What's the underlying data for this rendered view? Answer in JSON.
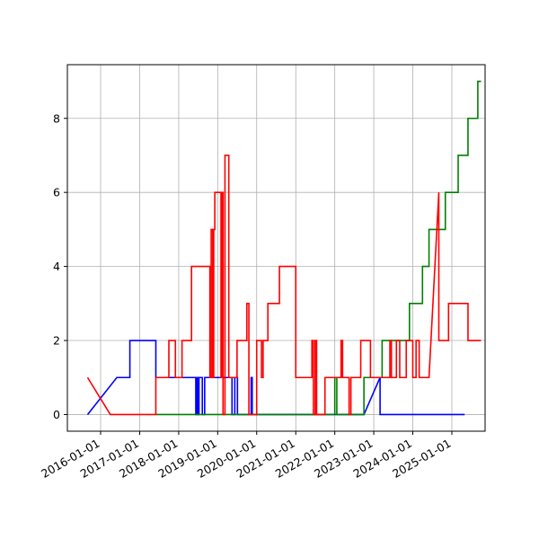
{
  "chart_data": {
    "type": "line",
    "title": "",
    "xlabel": "",
    "ylabel": "",
    "grid": true,
    "legend": "none",
    "x_type": "date",
    "xlim": [
      "2015-08-01",
      "2025-08-01"
    ],
    "ylim": [
      -0.45,
      9.45
    ],
    "x_ticks": [
      "2016-01-01",
      "2017-01-01",
      "2018-01-01",
      "2019-01-01",
      "2020-01-01",
      "2021-01-01",
      "2022-01-01",
      "2023-01-01",
      "2024-01-01",
      "2025-01-01"
    ],
    "x_tick_labels": [
      "2016-01-01",
      "2017-01-01",
      "2018-01-01",
      "2019-01-01",
      "2020-01-01",
      "2021-01-01",
      "2022-01-01",
      "2023-01-01",
      "2024-01-01",
      "2025-01-01"
    ],
    "y_ticks": [
      0,
      2,
      4,
      6,
      8
    ],
    "y_tick_labels": [
      "0",
      "2",
      "4",
      "6",
      "8"
    ],
    "series": [
      {
        "color": "#0000ff",
        "points": [
          [
            "2015-09-01",
            0
          ],
          [
            "2016-06-01",
            1
          ],
          [
            "2016-10-01",
            1
          ],
          [
            "2016-10-01",
            2
          ],
          [
            "2017-06-01",
            2
          ],
          [
            "2017-06-01",
            1
          ],
          [
            "2018-06-10",
            1
          ],
          [
            "2018-06-10",
            0
          ],
          [
            "2018-06-20",
            0
          ],
          [
            "2018-06-20",
            1
          ],
          [
            "2018-07-01",
            1
          ],
          [
            "2018-07-01",
            0
          ],
          [
            "2018-07-10",
            0
          ],
          [
            "2018-07-10",
            1
          ],
          [
            "2018-08-10",
            1
          ],
          [
            "2018-08-10",
            0
          ],
          [
            "2018-09-01",
            0
          ],
          [
            "2018-09-01",
            1
          ],
          [
            "2019-05-15",
            1
          ],
          [
            "2019-05-15",
            0
          ],
          [
            "2019-06-10",
            0
          ],
          [
            "2019-06-10",
            1
          ],
          [
            "2019-07-05",
            1
          ],
          [
            "2019-07-05",
            0
          ],
          [
            "2019-11-10",
            0
          ],
          [
            "2019-11-10",
            1
          ],
          [
            "2019-11-20",
            1
          ],
          [
            "2019-11-20",
            0
          ],
          [
            "2022-10-01",
            0
          ],
          [
            "2023-03-01",
            1
          ],
          [
            "2023-03-01",
            0
          ],
          [
            "2025-05-01",
            0
          ]
        ]
      },
      {
        "color": "#008000",
        "points": [
          [
            "2017-06-01",
            0
          ],
          [
            "2022-01-01",
            0
          ],
          [
            "2022-01-01",
            1
          ],
          [
            "2022-01-20",
            1
          ],
          [
            "2022-01-20",
            0
          ],
          [
            "2022-10-01",
            0
          ],
          [
            "2022-10-01",
            1
          ],
          [
            "2023-03-20",
            1
          ],
          [
            "2023-03-20",
            2
          ],
          [
            "2023-12-01",
            2
          ],
          [
            "2023-12-01",
            3
          ],
          [
            "2024-04-01",
            3
          ],
          [
            "2024-04-01",
            4
          ],
          [
            "2024-06-01",
            4
          ],
          [
            "2024-06-01",
            5
          ],
          [
            "2024-11-01",
            5
          ],
          [
            "2024-11-01",
            6
          ],
          [
            "2025-03-01",
            6
          ],
          [
            "2025-03-01",
            7
          ],
          [
            "2025-06-01",
            7
          ],
          [
            "2025-06-01",
            8
          ],
          [
            "2025-09-01",
            8
          ],
          [
            "2025-09-01",
            9
          ],
          [
            "2025-10-01",
            9
          ]
        ]
      },
      {
        "color": "#ff0000",
        "points": [
          [
            "2015-09-01",
            1
          ],
          [
            "2016-04-01",
            0
          ],
          [
            "2017-06-01",
            0
          ],
          [
            "2017-06-01",
            1
          ],
          [
            "2017-10-01",
            1
          ],
          [
            "2017-10-01",
            2
          ],
          [
            "2017-12-01",
            2
          ],
          [
            "2017-12-01",
            1
          ],
          [
            "2018-02-01",
            1
          ],
          [
            "2018-02-01",
            2
          ],
          [
            "2018-05-01",
            2
          ],
          [
            "2018-05-01",
            4
          ],
          [
            "2018-10-20",
            4
          ],
          [
            "2018-10-20",
            1
          ],
          [
            "2018-11-01",
            1
          ],
          [
            "2018-11-01",
            5
          ],
          [
            "2018-11-15",
            5
          ],
          [
            "2018-11-15",
            1
          ],
          [
            "2018-11-25",
            1
          ],
          [
            "2018-11-25",
            5
          ],
          [
            "2018-12-05",
            5
          ],
          [
            "2018-12-05",
            6
          ],
          [
            "2019-02-01",
            6
          ],
          [
            "2019-02-01",
            1
          ],
          [
            "2019-02-10",
            1
          ],
          [
            "2019-02-10",
            6
          ],
          [
            "2019-02-20",
            6
          ],
          [
            "2019-02-20",
            0
          ],
          [
            "2019-03-10",
            0
          ],
          [
            "2019-03-10",
            7
          ],
          [
            "2019-04-15",
            7
          ],
          [
            "2019-04-15",
            1
          ],
          [
            "2019-07-01",
            1
          ],
          [
            "2019-07-01",
            2
          ],
          [
            "2019-10-01",
            2
          ],
          [
            "2019-10-01",
            3
          ],
          [
            "2019-10-20",
            3
          ],
          [
            "2019-10-20",
            0
          ],
          [
            "2020-01-01",
            0
          ],
          [
            "2020-01-01",
            2
          ],
          [
            "2020-02-15",
            2
          ],
          [
            "2020-02-15",
            1
          ],
          [
            "2020-03-01",
            1
          ],
          [
            "2020-03-01",
            2
          ],
          [
            "2020-04-15",
            2
          ],
          [
            "2020-04-15",
            3
          ],
          [
            "2020-08-01",
            3
          ],
          [
            "2020-08-01",
            4
          ],
          [
            "2021-01-01",
            4
          ],
          [
            "2021-01-01",
            1
          ],
          [
            "2021-06-01",
            1
          ],
          [
            "2021-06-01",
            2
          ],
          [
            "2021-06-15",
            2
          ],
          [
            "2021-06-15",
            0
          ],
          [
            "2021-07-01",
            0
          ],
          [
            "2021-07-01",
            2
          ],
          [
            "2021-07-15",
            2
          ],
          [
            "2021-07-15",
            0
          ],
          [
            "2021-10-01",
            0
          ],
          [
            "2021-10-01",
            1
          ],
          [
            "2022-03-01",
            1
          ],
          [
            "2022-03-01",
            2
          ],
          [
            "2022-03-15",
            2
          ],
          [
            "2022-03-15",
            1
          ],
          [
            "2022-05-15",
            1
          ],
          [
            "2022-05-15",
            0
          ],
          [
            "2022-06-01",
            0
          ],
          [
            "2022-06-01",
            1
          ],
          [
            "2022-09-01",
            1
          ],
          [
            "2022-09-01",
            2
          ],
          [
            "2022-12-01",
            2
          ],
          [
            "2022-12-01",
            1
          ],
          [
            "2023-06-01",
            1
          ],
          [
            "2023-06-01",
            2
          ],
          [
            "2023-06-15",
            2
          ],
          [
            "2023-06-15",
            1
          ],
          [
            "2023-08-01",
            1
          ],
          [
            "2023-08-01",
            2
          ],
          [
            "2023-09-01",
            2
          ],
          [
            "2023-09-01",
            1
          ],
          [
            "2023-11-01",
            1
          ],
          [
            "2023-11-01",
            2
          ],
          [
            "2024-01-01",
            2
          ],
          [
            "2024-01-01",
            1
          ],
          [
            "2024-02-01",
            1
          ],
          [
            "2024-02-01",
            2
          ],
          [
            "2024-03-01",
            2
          ],
          [
            "2024-03-01",
            1
          ],
          [
            "2024-06-01",
            1
          ],
          [
            "2024-09-01",
            6
          ],
          [
            "2024-09-01",
            2
          ],
          [
            "2024-12-01",
            2
          ],
          [
            "2024-12-01",
            3
          ],
          [
            "2025-06-01",
            3
          ],
          [
            "2025-06-01",
            2
          ],
          [
            "2025-10-01",
            2
          ]
        ]
      }
    ]
  }
}
